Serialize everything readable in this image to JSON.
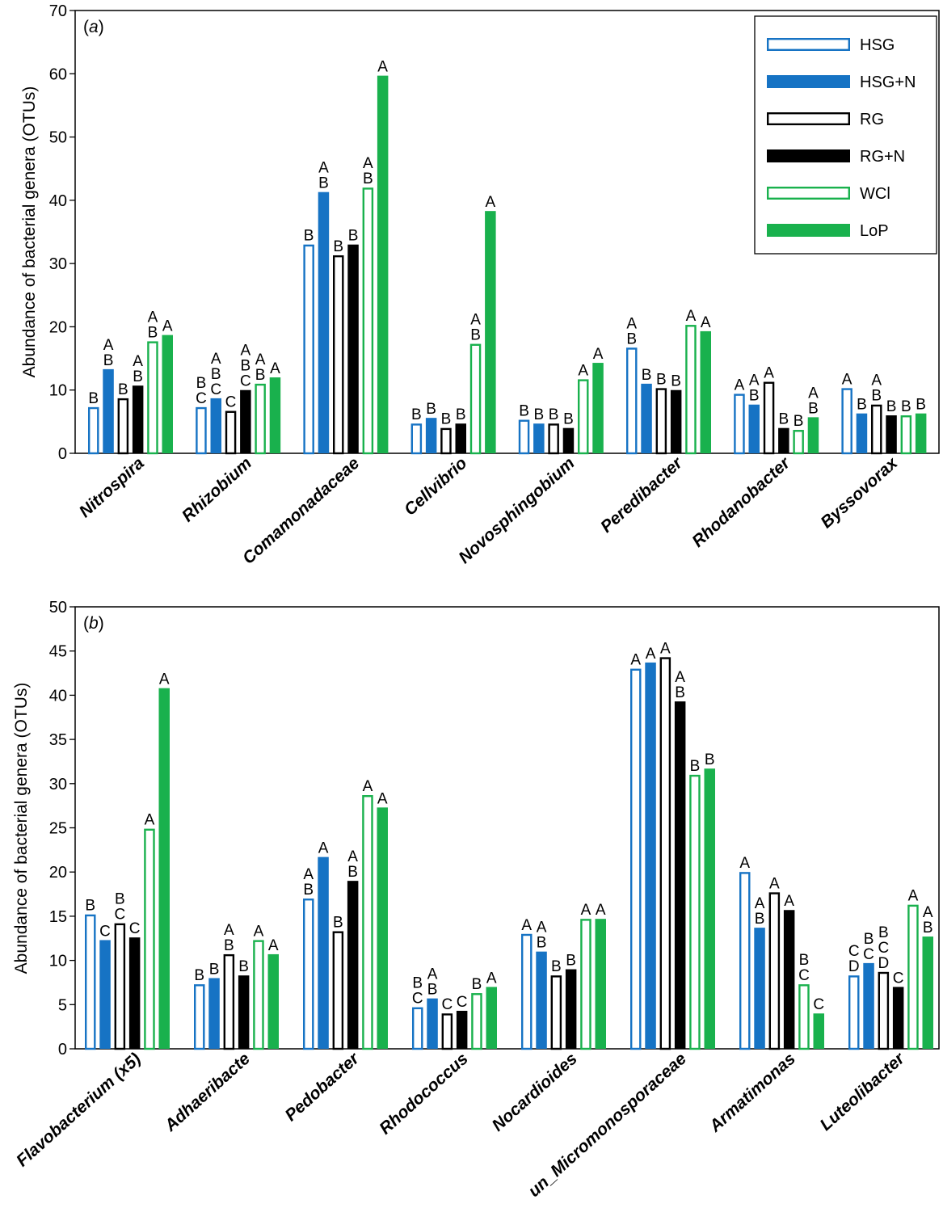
{
  "series_styles": [
    {
      "name": "HSG",
      "color": "#1673c4",
      "fill": "none"
    },
    {
      "name": "HSG+N",
      "color": "#1673c4",
      "fill": "solid"
    },
    {
      "name": "RG",
      "color": "#000000",
      "fill": "none"
    },
    {
      "name": "RG+N",
      "color": "#000000",
      "fill": "solid"
    },
    {
      "name": "WCl",
      "color": "#19b14d",
      "fill": "none"
    },
    {
      "name": "LoP",
      "color": "#19b14d",
      "fill": "solid"
    }
  ],
  "chart_data": [
    {
      "type": "bar",
      "panel_label": "a",
      "ylabel": "Abundance of bacterial genera (OTUs)",
      "xlabel": "",
      "ylim": [
        0,
        70
      ],
      "yticks": [
        0,
        10,
        20,
        30,
        40,
        50,
        60,
        70
      ],
      "legend": {
        "position": "top-right",
        "entries": [
          "HSG",
          "HSG+N",
          "RG",
          "RG+N",
          "WCl",
          "LoP"
        ]
      },
      "categories": [
        "Nitrospira",
        "Rhizobium",
        "Comamonadaceae",
        "Cellvibrio",
        "Novosphingobium",
        "Peredibacter",
        "Rhodanobacter",
        "Byssovorax"
      ],
      "series": [
        {
          "name": "HSG",
          "values": [
            7.3,
            7.3,
            33,
            4.7,
            5.3,
            16.7,
            9.4,
            10.3
          ]
        },
        {
          "name": "HSG+N",
          "values": [
            13.3,
            8.7,
            41.3,
            5.6,
            4.7,
            11,
            7.7,
            6.3
          ]
        },
        {
          "name": "RG",
          "values": [
            8.7,
            6.7,
            31.3,
            4,
            4.7,
            10.3,
            11.3,
            7.7
          ]
        },
        {
          "name": "RG+N",
          "values": [
            10.7,
            10,
            33,
            4.7,
            4,
            10,
            4,
            6
          ]
        },
        {
          "name": "WCl",
          "values": [
            17.7,
            11,
            42,
            17.3,
            11.7,
            20.3,
            3.7,
            6
          ]
        },
        {
          "name": "LoP",
          "values": [
            18.7,
            12,
            59.7,
            38.3,
            14.3,
            19.3,
            5.7,
            6.3
          ]
        }
      ],
      "annotations": [
        [
          "B",
          "AB",
          "B",
          "AB",
          "AB",
          "A"
        ],
        [
          "BC",
          "ABC",
          "C",
          "ABC",
          "AB",
          "A"
        ],
        [
          "B",
          "AB",
          "B",
          "B",
          "AB",
          "A"
        ],
        [
          "B",
          "B",
          "B",
          "B",
          "AB",
          "A"
        ],
        [
          "B",
          "B",
          "B",
          "B",
          "A",
          "A"
        ],
        [
          "AB",
          "B",
          "B",
          "B",
          "A",
          "A"
        ],
        [
          "A",
          "AB",
          "A",
          "B",
          "B",
          "AB"
        ],
        [
          "A",
          "B",
          "AB",
          "B",
          "B",
          "B"
        ]
      ]
    },
    {
      "type": "bar",
      "panel_label": "b",
      "ylabel": "Abundance of bacterial genera (OTUs)",
      "xlabel": "",
      "ylim": [
        0,
        50
      ],
      "yticks": [
        0,
        5,
        10,
        15,
        20,
        25,
        30,
        35,
        40,
        45,
        50
      ],
      "categories": [
        "Flavobacterium (x5)",
        "Adhaeribacte",
        "Pedobacter",
        "Rhodococcus",
        "Nocardioides",
        "un_Micromonosporaceae",
        "Armatimonas",
        "Luteolibacter"
      ],
      "series": [
        {
          "name": "HSG",
          "values": [
            15.2,
            7.3,
            17,
            4.7,
            13,
            43,
            20,
            8.3
          ]
        },
        {
          "name": "HSG+N",
          "values": [
            12.3,
            8,
            21.7,
            5.7,
            11,
            43.7,
            13.7,
            9.7
          ]
        },
        {
          "name": "RG",
          "values": [
            14.2,
            10.7,
            13.3,
            4,
            8.3,
            44.3,
            17.7,
            8.7
          ]
        },
        {
          "name": "RG+N",
          "values": [
            12.6,
            8.3,
            19,
            4.3,
            9,
            39.3,
            15.7,
            7
          ]
        },
        {
          "name": "WCl",
          "values": [
            24.9,
            12.3,
            28.7,
            6.3,
            14.7,
            31,
            7.3,
            16.3
          ]
        },
        {
          "name": "LoP",
          "values": [
            40.8,
            10.7,
            27.3,
            7,
            14.7,
            31.7,
            4,
            12.7
          ]
        }
      ],
      "annotations": [
        [
          "B",
          "C",
          "BC",
          "C",
          "A",
          "A"
        ],
        [
          "B",
          "B",
          "AB",
          "B",
          "A",
          "A"
        ],
        [
          "AB",
          "A",
          "B",
          "AB",
          "A",
          "A"
        ],
        [
          "BC",
          "AB",
          "C",
          "C",
          "B",
          "A"
        ],
        [
          "A",
          "AB",
          "B",
          "B",
          "A",
          "A"
        ],
        [
          "A",
          "A",
          "A",
          "AB",
          "B",
          "B"
        ],
        [
          "A",
          "AB",
          "A",
          "A",
          "BC",
          "C"
        ],
        [
          "CD",
          "BC",
          "BCD",
          "C",
          "A",
          "AB"
        ]
      ]
    }
  ]
}
